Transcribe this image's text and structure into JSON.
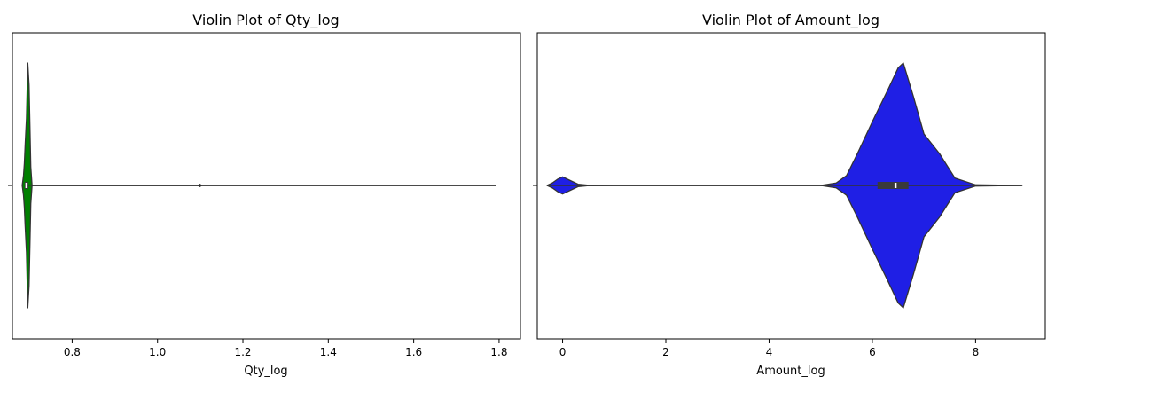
{
  "chart_data": [
    {
      "type": "violin",
      "title": "Violin Plot of Qty_log",
      "xlabel": "Qty_log",
      "ylabel": "",
      "xlim": [
        0.66,
        1.85
      ],
      "xticks": [
        0.8,
        1.0,
        1.2,
        1.4,
        1.6,
        1.8
      ],
      "tick_labels": [
        "0.8",
        "1.0",
        "1.2",
        "1.4",
        "1.6",
        "1.8"
      ],
      "color": "#008000",
      "grid": false,
      "whisker_range": [
        0.693,
        1.792
      ],
      "median": 0.693,
      "iqr": [
        0.693,
        0.693
      ],
      "density": [
        {
          "x": 0.683,
          "d": 0.0
        },
        {
          "x": 0.686,
          "d": 0.08
        },
        {
          "x": 0.688,
          "d": 0.18
        },
        {
          "x": 0.69,
          "d": 0.34
        },
        {
          "x": 0.693,
          "d": 0.55
        },
        {
          "x": 0.696,
          "d": 1.0
        },
        {
          "x": 0.699,
          "d": 0.82
        },
        {
          "x": 0.703,
          "d": 0.15
        },
        {
          "x": 0.706,
          "d": 0.0
        },
        {
          "x": 1.095,
          "d": 0.0
        },
        {
          "x": 1.099,
          "d": 0.01
        },
        {
          "x": 1.103,
          "d": 0.0
        }
      ]
    },
    {
      "type": "violin",
      "title": "Violin Plot of Amount_log",
      "xlabel": "Amount_log",
      "ylabel": "",
      "xlim": [
        -0.49,
        9.35
      ],
      "xticks": [
        0,
        2,
        4,
        6,
        8
      ],
      "tick_labels": [
        "0",
        "2",
        "4",
        "6",
        "8"
      ],
      "color": "#1f1fe5",
      "grid": false,
      "whisker_range": [
        -0.3,
        8.9
      ],
      "median": 6.45,
      "iqr": [
        6.1,
        6.7
      ],
      "density": [
        {
          "x": -0.3,
          "d": 0.0
        },
        {
          "x": -0.2,
          "d": 0.02
        },
        {
          "x": -0.1,
          "d": 0.05
        },
        {
          "x": 0.0,
          "d": 0.07
        },
        {
          "x": 0.1,
          "d": 0.05
        },
        {
          "x": 0.2,
          "d": 0.03
        },
        {
          "x": 0.3,
          "d": 0.01
        },
        {
          "x": 0.5,
          "d": 0.002
        },
        {
          "x": 1.0,
          "d": 0.0
        },
        {
          "x": 5.0,
          "d": 0.0
        },
        {
          "x": 5.3,
          "d": 0.02
        },
        {
          "x": 5.5,
          "d": 0.08
        },
        {
          "x": 5.7,
          "d": 0.25
        },
        {
          "x": 6.0,
          "d": 0.52
        },
        {
          "x": 6.3,
          "d": 0.78
        },
        {
          "x": 6.5,
          "d": 0.96
        },
        {
          "x": 6.6,
          "d": 1.0
        },
        {
          "x": 6.8,
          "d": 0.72
        },
        {
          "x": 7.0,
          "d": 0.42
        },
        {
          "x": 7.3,
          "d": 0.26
        },
        {
          "x": 7.6,
          "d": 0.06
        },
        {
          "x": 8.0,
          "d": 0.005
        },
        {
          "x": 8.9,
          "d": 0.0
        }
      ]
    }
  ]
}
